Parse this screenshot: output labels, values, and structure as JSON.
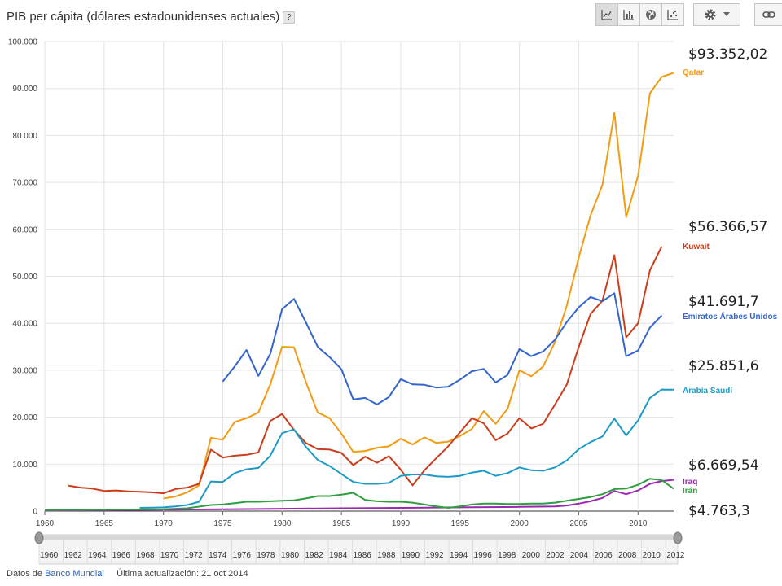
{
  "header": {
    "title": "PIB per cápita (dólares estadounidenses actuales)",
    "help_label": "?"
  },
  "toolbar": {
    "buttons": [
      "line-chart-icon",
      "bar-chart-icon",
      "globe-icon",
      "scatter-icon"
    ],
    "settings_icon": "gear-icon",
    "link_icon": "link-icon"
  },
  "footer": {
    "data_prefix": "Datos de",
    "source_link": "Banco Mundial",
    "updated": "Última actualización: 21 oct 2014"
  },
  "chart_data": {
    "type": "line",
    "title": "PIB per cápita (dólares estadounidenses actuales)",
    "xlabel": "",
    "ylabel": "",
    "xlim": [
      1960,
      2013
    ],
    "ylim": [
      0,
      100000
    ],
    "y_ticks": [
      "0",
      "10.000",
      "20.000",
      "30.000",
      "40.000",
      "50.000",
      "60.000",
      "70.000",
      "80.000",
      "90.000",
      "100.000"
    ],
    "x_ticks": [
      "1960",
      "1965",
      "1970",
      "1975",
      "1980",
      "1985",
      "1990",
      "1995",
      "2000",
      "2005",
      "2010"
    ],
    "range_ticks": [
      "1960",
      "1962",
      "1964",
      "1966",
      "1968",
      "1970",
      "1972",
      "1974",
      "1976",
      "1978",
      "1980",
      "1982",
      "1984",
      "1986",
      "1988",
      "1990",
      "1992",
      "1994",
      "1996",
      "1998",
      "2000",
      "2002",
      "2004",
      "2006",
      "2008",
      "2010",
      "2012"
    ],
    "grid": true,
    "legend": "right",
    "series": [
      {
        "name": "Qatar",
        "color": "#f39c12",
        "label_value": "$93.352,02",
        "x": [
          1970,
          1971,
          1972,
          1973,
          1974,
          1975,
          1976,
          1977,
          1978,
          1979,
          1980,
          1981,
          1982,
          1983,
          1984,
          1985,
          1986,
          1987,
          1988,
          1989,
          1990,
          1991,
          1992,
          1993,
          1994,
          1995,
          1996,
          1997,
          1998,
          1999,
          2000,
          2001,
          2002,
          2003,
          2004,
          2005,
          2006,
          2007,
          2008,
          2009,
          2010,
          2011,
          2012,
          2013
        ],
        "y": [
          2700,
          3100,
          4000,
          5500,
          15600,
          15200,
          19000,
          19800,
          21000,
          27000,
          35000,
          34900,
          27500,
          21000,
          19800,
          16500,
          12600,
          12800,
          13500,
          13800,
          15400,
          14200,
          15700,
          14500,
          14800,
          16000,
          17500,
          21300,
          18600,
          21800,
          30000,
          28700,
          30800,
          36000,
          43800,
          54000,
          63000,
          69500,
          84800,
          62600,
          71400,
          89000,
          92500,
          93352
        ]
      },
      {
        "name": "Kuwait",
        "color": "#cc3d1c",
        "label_value": "$56.366,57",
        "x": [
          1962,
          1963,
          1964,
          1965,
          1966,
          1967,
          1968,
          1969,
          1970,
          1971,
          1972,
          1973,
          1974,
          1975,
          1976,
          1977,
          1978,
          1979,
          1980,
          1981,
          1982,
          1983,
          1984,
          1985,
          1986,
          1987,
          1988,
          1989,
          1990,
          1991,
          1992,
          1993,
          1994,
          1995,
          1996,
          1997,
          1998,
          1999,
          2000,
          2001,
          2002,
          2003,
          2004,
          2005,
          2006,
          2007,
          2008,
          2009,
          2010,
          2011,
          2012
        ],
        "y": [
          5400,
          5000,
          4800,
          4300,
          4400,
          4200,
          4100,
          4000,
          3800,
          4700,
          5000,
          5800,
          13100,
          11400,
          11800,
          12000,
          12500,
          19200,
          20700,
          17300,
          14500,
          13200,
          13100,
          12400,
          9800,
          11600,
          10300,
          11700,
          8800,
          5500,
          8700,
          11300,
          13800,
          16800,
          19800,
          18700,
          15100,
          16500,
          19800,
          17600,
          18600,
          22700,
          27000,
          35000,
          42000,
          44800,
          54500,
          37000,
          40000,
          51300,
          56367
        ]
      },
      {
        "name": "Emiratos Árabes Unidos",
        "color": "#3366cc",
        "label_value": "$41.691,7",
        "x": [
          1975,
          1976,
          1977,
          1978,
          1979,
          1980,
          1981,
          1982,
          1983,
          1984,
          1985,
          1986,
          1987,
          1988,
          1989,
          1990,
          1991,
          1992,
          1993,
          1994,
          1995,
          1996,
          1997,
          1998,
          1999,
          2000,
          2001,
          2002,
          2003,
          2004,
          2005,
          2006,
          2007,
          2008,
          2009,
          2010,
          2011,
          2012
        ],
        "y": [
          27600,
          30800,
          34300,
          28800,
          33500,
          43000,
          45200,
          40200,
          35000,
          32800,
          30200,
          23800,
          24100,
          22700,
          24300,
          28100,
          27000,
          26900,
          26300,
          26500,
          28000,
          29800,
          30300,
          27400,
          29000,
          34500,
          33000,
          34000,
          36500,
          40300,
          43400,
          45600,
          44700,
          46400,
          33000,
          34200,
          39100,
          41692
        ]
      },
      {
        "name": "Arabia Saudí",
        "color": "#1b9bc6",
        "label_value": "$25.851,6",
        "x": [
          1968,
          1969,
          1970,
          1971,
          1972,
          1973,
          1974,
          1975,
          1976,
          1977,
          1978,
          1979,
          1980,
          1981,
          1982,
          1983,
          1984,
          1985,
          1986,
          1987,
          1988,
          1989,
          1990,
          1991,
          1992,
          1993,
          1994,
          1995,
          1996,
          1997,
          1998,
          1999,
          2000,
          2001,
          2002,
          2003,
          2004,
          2005,
          2006,
          2007,
          2008,
          2009,
          2010,
          2011,
          2012,
          2013
        ],
        "y": [
          700,
          750,
          800,
          1000,
          1300,
          2000,
          6300,
          6200,
          8100,
          8900,
          9200,
          11800,
          16600,
          17400,
          13700,
          10900,
          9600,
          7900,
          6200,
          5800,
          5800,
          6000,
          7500,
          7800,
          7800,
          7400,
          7300,
          7500,
          8200,
          8600,
          7500,
          8100,
          9300,
          8700,
          8600,
          9300,
          10800,
          13200,
          14700,
          15900,
          19700,
          16100,
          19300,
          24100,
          25900,
          25852
        ]
      },
      {
        "name": "Iraq",
        "color": "#9c27b0",
        "label_value": "$6.669,54",
        "x": [
          1960,
          1965,
          1970,
          1975,
          1980,
          1985,
          1990,
          1995,
          2000,
          2003,
          2004,
          2005,
          2006,
          2007,
          2008,
          2009,
          2010,
          2011,
          2012,
          2013
        ],
        "y": [
          100,
          200,
          300,
          400,
          500,
          600,
          700,
          800,
          900,
          1000,
          1200,
          1600,
          2100,
          2800,
          4300,
          3600,
          4400,
          5800,
          6400,
          6670
        ]
      },
      {
        "name": "Irán",
        "color": "#2e9e3e",
        "label_value": "$4.763,3",
        "x": [
          1960,
          1965,
          1970,
          1972,
          1974,
          1975,
          1976,
          1977,
          1978,
          1979,
          1980,
          1981,
          1982,
          1983,
          1984,
          1985,
          1986,
          1987,
          1988,
          1989,
          1990,
          1991,
          1992,
          1993,
          1994,
          1995,
          1996,
          1997,
          1998,
          1999,
          2000,
          2001,
          2002,
          2003,
          2004,
          2005,
          2006,
          2007,
          2008,
          2009,
          2010,
          2011,
          2012,
          2013
        ],
        "y": [
          200,
          300,
          400,
          600,
          1300,
          1400,
          1700,
          2000,
          2000,
          2100,
          2200,
          2300,
          2700,
          3200,
          3200,
          3500,
          3900,
          2400,
          2100,
          2000,
          2000,
          1800,
          1400,
          1000,
          700,
          1000,
          1400,
          1600,
          1600,
          1500,
          1500,
          1600,
          1600,
          1800,
          2200,
          2600,
          3000,
          3600,
          4700,
          4800,
          5600,
          6900,
          6600,
          4763
        ]
      }
    ]
  }
}
